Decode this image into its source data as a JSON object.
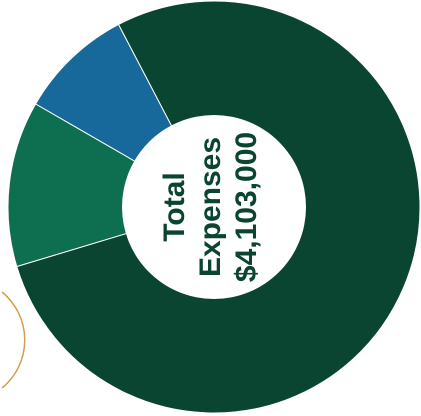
{
  "chart_data": {
    "type": "pie",
    "donut": true,
    "slices": [
      {
        "value": 9,
        "color": "#18699b"
      },
      {
        "value": 78,
        "color": "#094530"
      },
      {
        "value": 13,
        "color": "#0d6e50"
      }
    ],
    "center": {
      "lines": [
        "Total",
        "Expenses",
        "$4,103,000"
      ]
    }
  },
  "colors": {
    "background": "#ffffff",
    "center_fill": "#ffffff",
    "center_text": "#0b4430",
    "accent_arc": "#d0a04a"
  }
}
